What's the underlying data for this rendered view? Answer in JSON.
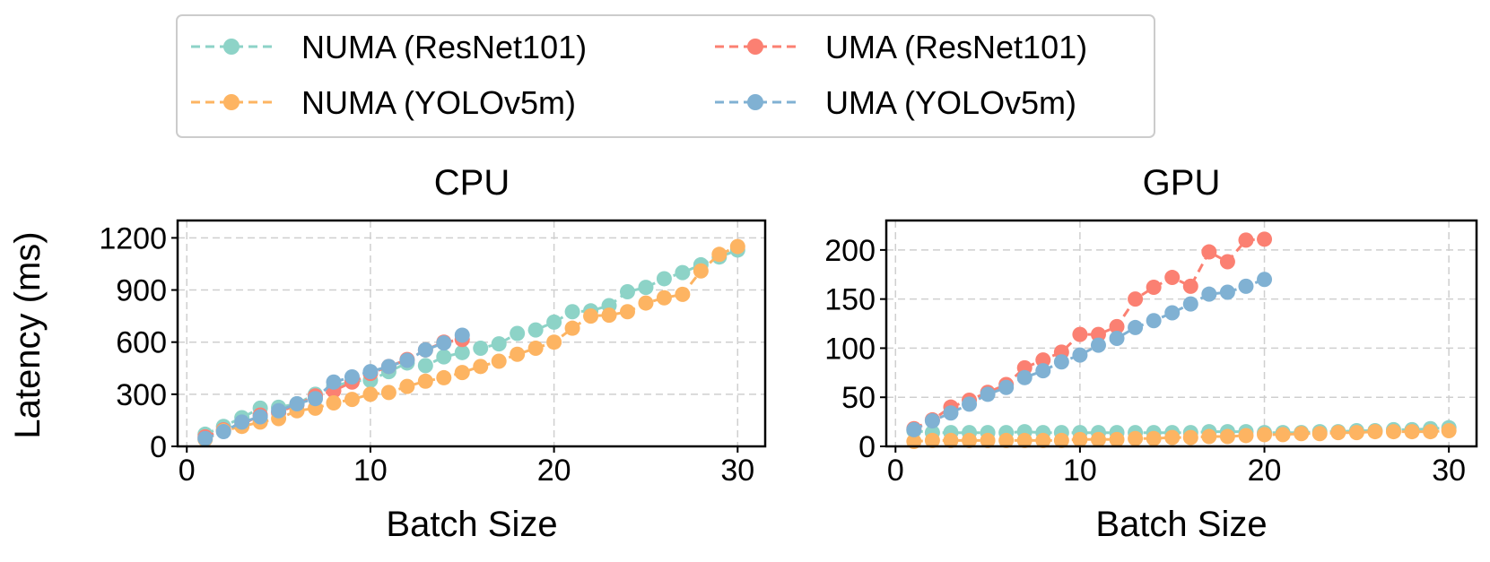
{
  "legend": {
    "entries": [
      {
        "series_index": 0,
        "label": "NUMA (ResNet101)"
      },
      {
        "series_index": 1,
        "label": "UMA (ResNet101)"
      },
      {
        "series_index": 2,
        "label": "NUMA (YOLOv5m)"
      },
      {
        "series_index": 3,
        "label": "UMA (YOLOv5m)"
      }
    ]
  },
  "shared_ylabel": "Latency (ms)",
  "colors": {
    "numa_resnet": "#8dd3c7",
    "uma_resnet": "#fb8072",
    "numa_yolo": "#fdb462",
    "uma_yolo": "#80b1d3"
  },
  "chart_data": [
    {
      "type": "line",
      "title": "CPU",
      "xlabel": "Batch Size",
      "ylabel": "Latency (ms)",
      "xlim": [
        -0.5,
        31.5
      ],
      "ylim": [
        0,
        1300
      ],
      "xticks": [
        0,
        10,
        20,
        30
      ],
      "yticks": [
        0,
        300,
        600,
        900,
        1200
      ],
      "grid": true,
      "series": [
        {
          "name": "NUMA (ResNet101)",
          "color": "#8dd3c7",
          "x": [
            1,
            2,
            3,
            4,
            5,
            6,
            7,
            8,
            9,
            10,
            11,
            12,
            13,
            14,
            15,
            16,
            17,
            18,
            19,
            20,
            21,
            22,
            23,
            24,
            25,
            26,
            27,
            28,
            29,
            30
          ],
          "y": [
            70,
            115,
            165,
            220,
            225,
            245,
            300,
            345,
            375,
            380,
            430,
            480,
            465,
            515,
            540,
            565,
            590,
            650,
            670,
            715,
            775,
            780,
            810,
            890,
            915,
            965,
            1000,
            1045,
            1090,
            1130
          ]
        },
        {
          "name": "UMA (ResNet101)",
          "color": "#fb8072",
          "x": [
            1,
            2,
            3,
            4,
            5,
            6,
            7,
            8,
            9,
            10,
            11,
            12,
            13,
            14,
            15
          ],
          "y": [
            55,
            95,
            125,
            180,
            195,
            240,
            290,
            320,
            370,
            420,
            460,
            500,
            555,
            600,
            615
          ]
        },
        {
          "name": "NUMA (YOLOv5m)",
          "color": "#fdb462",
          "x": [
            1,
            2,
            3,
            4,
            5,
            6,
            7,
            8,
            9,
            10,
            11,
            12,
            13,
            14,
            15,
            16,
            17,
            18,
            19,
            20,
            21,
            22,
            23,
            24,
            25,
            26,
            27,
            28,
            29,
            30
          ],
          "y": [
            40,
            90,
            115,
            140,
            160,
            205,
            220,
            250,
            270,
            300,
            310,
            345,
            375,
            395,
            425,
            460,
            490,
            530,
            565,
            600,
            680,
            750,
            755,
            775,
            825,
            855,
            875,
            1010,
            1105,
            1150
          ]
        },
        {
          "name": "UMA (YOLOv5m)",
          "color": "#80b1d3",
          "x": [
            1,
            2,
            3,
            4,
            5,
            6,
            7,
            8,
            9,
            10,
            11,
            12,
            13,
            14,
            15
          ],
          "y": [
            45,
            85,
            140,
            170,
            205,
            245,
            275,
            370,
            400,
            430,
            460,
            495,
            555,
            595,
            640
          ]
        }
      ]
    },
    {
      "type": "line",
      "title": "GPU",
      "xlabel": "Batch Size",
      "ylabel": "",
      "xlim": [
        -0.5,
        31.5
      ],
      "ylim": [
        0,
        230
      ],
      "xticks": [
        0,
        10,
        20,
        30
      ],
      "yticks": [
        0,
        50,
        100,
        150,
        200
      ],
      "grid": true,
      "series": [
        {
          "name": "NUMA (ResNet101)",
          "color": "#8dd3c7",
          "x": [
            1,
            2,
            3,
            4,
            5,
            6,
            7,
            8,
            9,
            10,
            11,
            12,
            13,
            14,
            15,
            16,
            17,
            18,
            19,
            20,
            21,
            22,
            23,
            24,
            25,
            26,
            27,
            28,
            29,
            30
          ],
          "y": [
            16,
            14,
            14,
            14,
            14,
            14,
            15,
            14,
            14,
            14,
            14,
            14,
            14,
            14,
            14,
            14,
            15,
            15,
            15,
            14,
            14,
            14,
            15,
            15,
            16,
            16,
            17,
            17,
            18,
            19
          ]
        },
        {
          "name": "UMA (ResNet101)",
          "color": "#fb8072",
          "x": [
            1,
            2,
            3,
            4,
            5,
            6,
            7,
            8,
            9,
            10,
            11,
            12,
            13,
            14,
            15,
            16,
            17,
            18,
            19,
            20
          ],
          "y": [
            18,
            27,
            40,
            47,
            55,
            63,
            80,
            88,
            96,
            114,
            114,
            122,
            150,
            162,
            172,
            163,
            198,
            188,
            210,
            211
          ]
        },
        {
          "name": "NUMA (YOLOv5m)",
          "color": "#fdb462",
          "x": [
            1,
            2,
            3,
            4,
            5,
            6,
            7,
            8,
            9,
            10,
            11,
            12,
            13,
            14,
            15,
            16,
            17,
            18,
            19,
            20,
            21,
            22,
            23,
            24,
            25,
            26,
            27,
            28,
            29,
            30
          ],
          "y": [
            5,
            6,
            6,
            6,
            6,
            6,
            6,
            6,
            6,
            7,
            7,
            7,
            8,
            8,
            9,
            9,
            10,
            10,
            11,
            12,
            12,
            13,
            13,
            14,
            14,
            15,
            15,
            15,
            15,
            16
          ]
        },
        {
          "name": "UMA (YOLOv5m)",
          "color": "#80b1d3",
          "x": [
            1,
            2,
            3,
            4,
            5,
            6,
            7,
            8,
            9,
            10,
            11,
            12,
            13,
            14,
            15,
            16,
            17,
            18,
            19,
            20
          ],
          "y": [
            17,
            26,
            34,
            43,
            53,
            60,
            70,
            77,
            86,
            93,
            103,
            110,
            121,
            128,
            136,
            145,
            155,
            157,
            163,
            170
          ]
        }
      ]
    }
  ]
}
